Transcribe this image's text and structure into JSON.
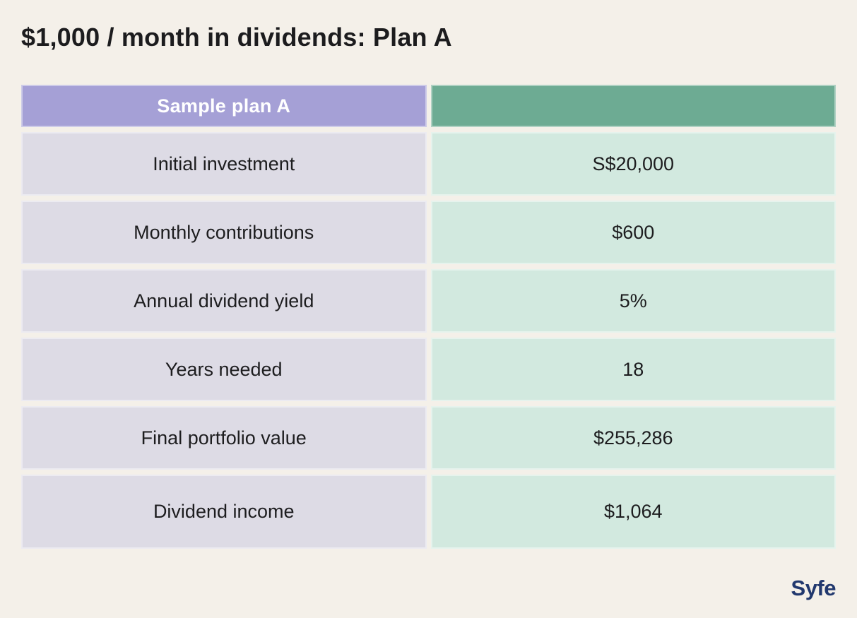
{
  "page": {
    "title": "$1,000 / month in dividends: Plan A"
  },
  "table": {
    "header": {
      "left": "Sample plan A",
      "right": ""
    },
    "rows": [
      {
        "label": "Initial investment",
        "value": "S$20,000"
      },
      {
        "label": "Monthly contributions",
        "value": "$600"
      },
      {
        "label": "Annual dividend yield",
        "value": "5%"
      },
      {
        "label": "Years needed",
        "value": "18"
      },
      {
        "label": "Final portfolio value",
        "value": "$255,286"
      },
      {
        "label": "Dividend income",
        "value": "$1,064"
      }
    ]
  },
  "footer": {
    "logo_text": "Syfe"
  },
  "colors": {
    "background": "#f4f0e9",
    "header_purple": "#a5a0d6",
    "header_green": "#6dab93",
    "row_lavender": "#dddbe5",
    "row_mint": "#d2e9df",
    "text_dark": "#1d1d1f",
    "header_text": "#ffffff",
    "logo_navy": "#21386e"
  },
  "chart_data": {
    "type": "table",
    "title": "$1,000 / month in dividends: Plan A",
    "columns": [
      "Sample plan A",
      ""
    ],
    "rows": [
      [
        "Initial investment",
        "S$20,000"
      ],
      [
        "Monthly contributions",
        "$600"
      ],
      [
        "Annual dividend yield",
        "5%"
      ],
      [
        "Years needed",
        "18"
      ],
      [
        "Final portfolio value",
        "$255,286"
      ],
      [
        "Dividend income",
        "$1,064"
      ]
    ]
  }
}
